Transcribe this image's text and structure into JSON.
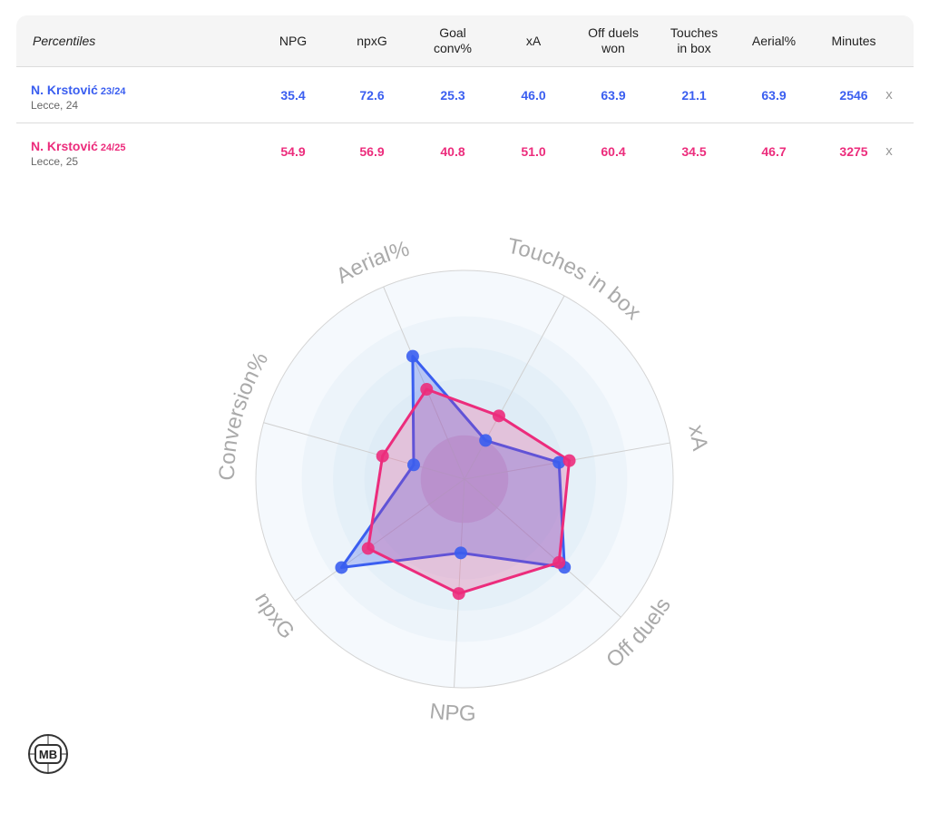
{
  "table": {
    "header_label": "Percentiles",
    "columns": [
      {
        "line1": "NPG",
        "line2": ""
      },
      {
        "line1": "npxG",
        "line2": ""
      },
      {
        "line1": "Goal",
        "line2": "conv%"
      },
      {
        "line1": "xA",
        "line2": ""
      },
      {
        "line1": "Off duels",
        "line2": "won"
      },
      {
        "line1": "Touches",
        "line2": "in box"
      },
      {
        "line1": "Aerial%",
        "line2": ""
      },
      {
        "line1": "Minutes",
        "line2": ""
      }
    ],
    "rows": [
      {
        "name": "N. Krstović",
        "season": "23/24",
        "team": "Lecce, 24",
        "color": "#3a5ef0",
        "values": [
          "35.4",
          "72.6",
          "25.3",
          "46.0",
          "63.9",
          "21.1",
          "63.9",
          "2546"
        ],
        "remove_label": "x"
      },
      {
        "name": "N. Krstović",
        "season": "24/25",
        "team": "Lecce, 25",
        "color": "#ec2c7c",
        "values": [
          "54.9",
          "56.9",
          "40.8",
          "51.0",
          "60.4",
          "34.5",
          "46.7",
          "3275"
        ],
        "remove_label": "x"
      }
    ]
  },
  "chart_data": {
    "type": "radar",
    "axes": [
      "xA",
      "Off duels",
      "NPG",
      "npxG",
      "Conversion%",
      "Aerial%",
      "Touches in box"
    ],
    "range": [
      0,
      100
    ],
    "rings": 4,
    "series": [
      {
        "name": "N. Krstović 23/24",
        "color": "#3a5ef0",
        "values": [
          46.0,
          63.9,
          35.4,
          72.6,
          25.3,
          63.9,
          21.1
        ]
      },
      {
        "name": "N. Krstović 24/25",
        "color": "#ec2c7c",
        "values": [
          51.0,
          60.4,
          54.9,
          56.9,
          40.8,
          46.7,
          34.5
        ]
      }
    ]
  },
  "logo": {
    "text": "MB",
    "icon": "mb-logo-icon"
  }
}
